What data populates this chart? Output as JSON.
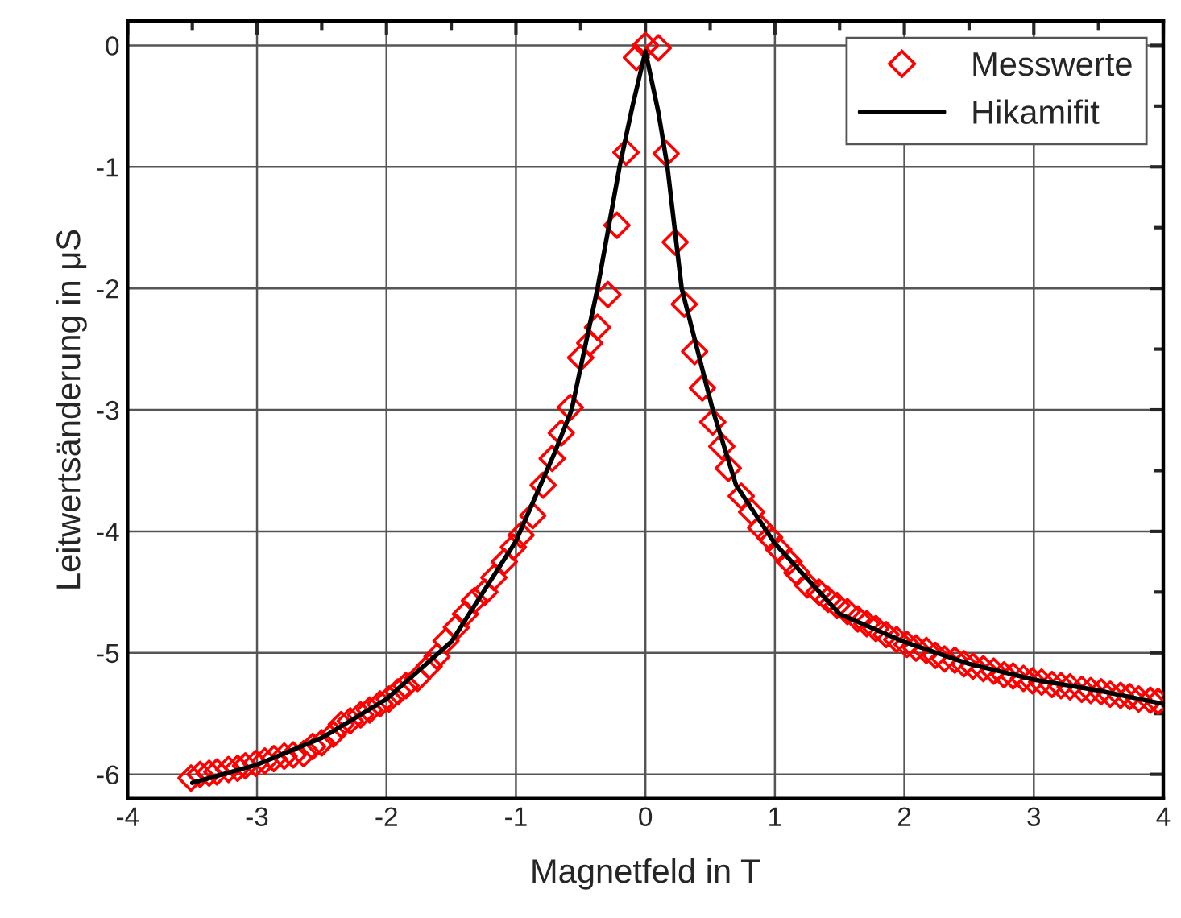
{
  "chart_data": {
    "type": "scatter",
    "xlabel": "Magnetfeld in T",
    "ylabel": "Leitwertsänderung in μS",
    "xlim": [
      -4,
      4
    ],
    "ylim": [
      -6.2,
      0.2
    ],
    "xticks": [
      -4,
      -3,
      -2,
      -1,
      0,
      1,
      2,
      3,
      4
    ],
    "yticks": [
      -6,
      -5,
      -4,
      -3,
      -2,
      -1,
      0
    ],
    "grid": true,
    "legend": "top right",
    "series": [
      {
        "name": "Messwerte",
        "marker": "diamond",
        "color": "#ff0000",
        "x": [
          -3.51,
          -3.44,
          -3.37,
          -3.31,
          -3.22,
          -3.15,
          -3.09,
          -3.01,
          -2.94,
          -2.87,
          -2.79,
          -2.72,
          -2.64,
          -2.57,
          -2.5,
          -2.41,
          -2.35,
          -2.28,
          -2.2,
          -2.13,
          -2.05,
          -1.98,
          -1.91,
          -1.85,
          -1.76,
          -1.67,
          -1.61,
          -1.54,
          -1.46,
          -1.39,
          -1.32,
          -1.24,
          -1.17,
          -1.09,
          -1.02,
          -0.96,
          -0.87,
          -0.79,
          -0.72,
          -0.65,
          -0.58,
          -0.5,
          -0.43,
          -0.37,
          -0.29,
          -0.22,
          -0.15,
          -0.07,
          0,
          0.1,
          0.16,
          0.23,
          0.3,
          0.38,
          0.44,
          0.52,
          0.59,
          0.64,
          0.74,
          0.82,
          0.89,
          0.96,
          1.03,
          1.11,
          1.17,
          1.25,
          1.34,
          1.41,
          1.48,
          1.56,
          1.64,
          1.71,
          1.78,
          1.86,
          1.94,
          2.02,
          2.09,
          2.17,
          2.24,
          2.31,
          2.39,
          2.46,
          2.53,
          2.61,
          2.69,
          2.77,
          2.84,
          2.92,
          2.99,
          3.06,
          3.14,
          3.21,
          3.28,
          3.37,
          3.44,
          3.52,
          3.59,
          3.67,
          3.74,
          3.81,
          3.9,
          3.96
        ],
        "values": [
          -6.03,
          -6.0,
          -5.99,
          -5.98,
          -5.96,
          -5.95,
          -5.93,
          -5.91,
          -5.89,
          -5.87,
          -5.85,
          -5.84,
          -5.83,
          -5.77,
          -5.74,
          -5.67,
          -5.59,
          -5.56,
          -5.51,
          -5.47,
          -5.42,
          -5.38,
          -5.32,
          -5.27,
          -5.21,
          -5.11,
          -5.03,
          -4.9,
          -4.79,
          -4.68,
          -4.57,
          -4.5,
          -4.38,
          -4.25,
          -4.13,
          -4.03,
          -3.87,
          -3.62,
          -3.4,
          -3.19,
          -2.98,
          -2.57,
          -2.45,
          -2.32,
          -2.05,
          -1.48,
          -0.88,
          -0.1,
          0.0,
          -0.02,
          -0.89,
          -1.62,
          -2.13,
          -2.52,
          -2.82,
          -3.1,
          -3.3,
          -3.48,
          -3.71,
          -3.84,
          -3.97,
          -4.05,
          -4.15,
          -4.25,
          -4.34,
          -4.44,
          -4.5,
          -4.56,
          -4.61,
          -4.66,
          -4.72,
          -4.76,
          -4.8,
          -4.85,
          -4.89,
          -4.93,
          -4.96,
          -4.98,
          -5.02,
          -5.05,
          -5.06,
          -5.09,
          -5.11,
          -5.13,
          -5.15,
          -5.18,
          -5.19,
          -5.21,
          -5.23,
          -5.24,
          -5.26,
          -5.27,
          -5.28,
          -5.3,
          -5.31,
          -5.32,
          -5.34,
          -5.35,
          -5.36,
          -5.38,
          -5.39,
          -5.4
        ]
      },
      {
        "name": "Hikamifit",
        "type": "line",
        "marker": "none",
        "line_style": "solid",
        "color": "#000000",
        "x": [
          -3.5,
          -3,
          -2.5,
          -2,
          -1.5,
          -1,
          -0.7,
          -0.57,
          -0.37,
          -0.2,
          -0.1,
          0,
          0.1,
          0.17,
          0.28,
          0.52,
          0.7,
          1,
          1.5,
          2,
          2.5,
          3,
          3.5,
          4
        ],
        "values": [
          -6.07,
          -5.92,
          -5.7,
          -5.38,
          -4.91,
          -4.08,
          -3.35,
          -3.0,
          -2.0,
          -1.0,
          -0.5,
          -0.05,
          -0.55,
          -1.0,
          -2.0,
          -3.0,
          -3.62,
          -4.1,
          -4.68,
          -4.91,
          -5.09,
          -5.22,
          -5.31,
          -5.42
        ]
      }
    ]
  }
}
